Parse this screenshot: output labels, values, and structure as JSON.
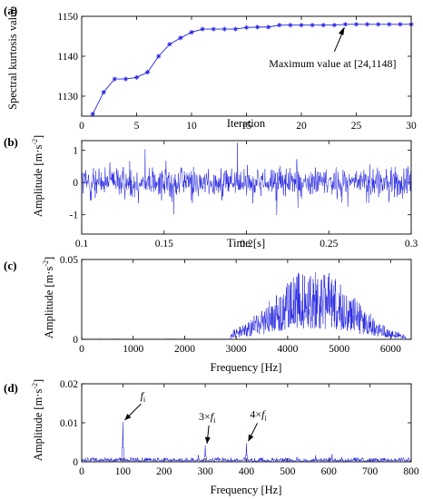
{
  "colors": {
    "series": "#2020e0",
    "axis": "#000000",
    "background": "#ffffff"
  },
  "chart_data": [
    {
      "panel_label": "(a)",
      "type": "line",
      "marker": "asterisk",
      "xlabel": "Iteration",
      "ylabel": "Spectral kurtosis value",
      "xlim": [
        0,
        30
      ],
      "ylim": [
        1125,
        1150
      ],
      "xticks": [
        0,
        5,
        10,
        15,
        20,
        25,
        30
      ],
      "yticks": [
        1130,
        1140,
        1150
      ],
      "x": [
        1,
        2,
        3,
        4,
        5,
        6,
        7,
        8,
        9,
        10,
        11,
        12,
        13,
        14,
        15,
        16,
        17,
        18,
        19,
        20,
        21,
        22,
        23,
        24,
        25,
        26,
        27,
        28,
        29,
        30
      ],
      "y": [
        1125.5,
        1131,
        1134.3,
        1134.3,
        1134.7,
        1136,
        1140,
        1143,
        1144.6,
        1146,
        1146.8,
        1146.8,
        1146.8,
        1146.8,
        1147.2,
        1147.3,
        1147.3,
        1147.8,
        1147.8,
        1147.8,
        1147.8,
        1147.8,
        1147.8,
        1148,
        1148,
        1148,
        1148,
        1148,
        1148,
        1148
      ],
      "annotation": {
        "text": "Maximum value at [24,1148]",
        "x": 24,
        "y": 1148
      }
    },
    {
      "panel_label": "(b)",
      "type": "line",
      "xlabel": "Time [s]",
      "ylabel_main": "Amplitude [m·s",
      "ylabel_sup": "-2",
      "ylabel_end": "]",
      "xlim": [
        0.1,
        0.3
      ],
      "ylim": [
        -1.6,
        1.3
      ],
      "xticks": [
        0.1,
        0.15,
        0.2,
        0.25,
        0.3
      ],
      "yticks": [
        -1,
        0,
        1
      ],
      "signal": {
        "kind": "noise",
        "start": 0.1,
        "end": 0.3,
        "n": 900,
        "amplitude_rms": 0.42
      }
    },
    {
      "panel_label": "(c)",
      "type": "line",
      "xlabel": "Frequency [Hz]",
      "ylabel_main": "Amplitude [m·s",
      "ylabel_sup": "-2",
      "ylabel_end": "]",
      "xlim": [
        0,
        6400
      ],
      "ylim": [
        0,
        0.05
      ],
      "xticks": [
        0,
        1000,
        2000,
        3000,
        4000,
        5000,
        6000
      ],
      "yticks": [
        0,
        0.05
      ],
      "signal": {
        "kind": "band",
        "start": 0,
        "end": 6400,
        "n": 1100,
        "band_low": 2900,
        "band_high": 6300,
        "center": 4500,
        "peak": 0.045
      }
    },
    {
      "panel_label": "(d)",
      "type": "line",
      "xlabel": "Frequency [Hz]",
      "ylabel_main": "Amplitude [m·s",
      "ylabel_sup": "-2",
      "ylabel_end": "]",
      "xlim": [
        0,
        800
      ],
      "ylim": [
        0,
        0.02
      ],
      "xticks": [
        0,
        100,
        200,
        300,
        400,
        500,
        600,
        700,
        800
      ],
      "yticks": [
        0,
        0.01,
        0.02
      ],
      "peaks": [
        {
          "x": 100,
          "y": 0.0102
        },
        {
          "x": 300,
          "y": 0.0042
        },
        {
          "x": 400,
          "y": 0.0048
        }
      ],
      "annotations": [
        {
          "prefix": "",
          "symbol": "f",
          "sub": "i",
          "x": 100,
          "y": 0.0102
        },
        {
          "prefix": "3×",
          "symbol": "f",
          "sub": "i",
          "x": 300,
          "y": 0.0042
        },
        {
          "prefix": "4×",
          "symbol": "f",
          "sub": "i",
          "x": 400,
          "y": 0.0048
        }
      ]
    }
  ]
}
